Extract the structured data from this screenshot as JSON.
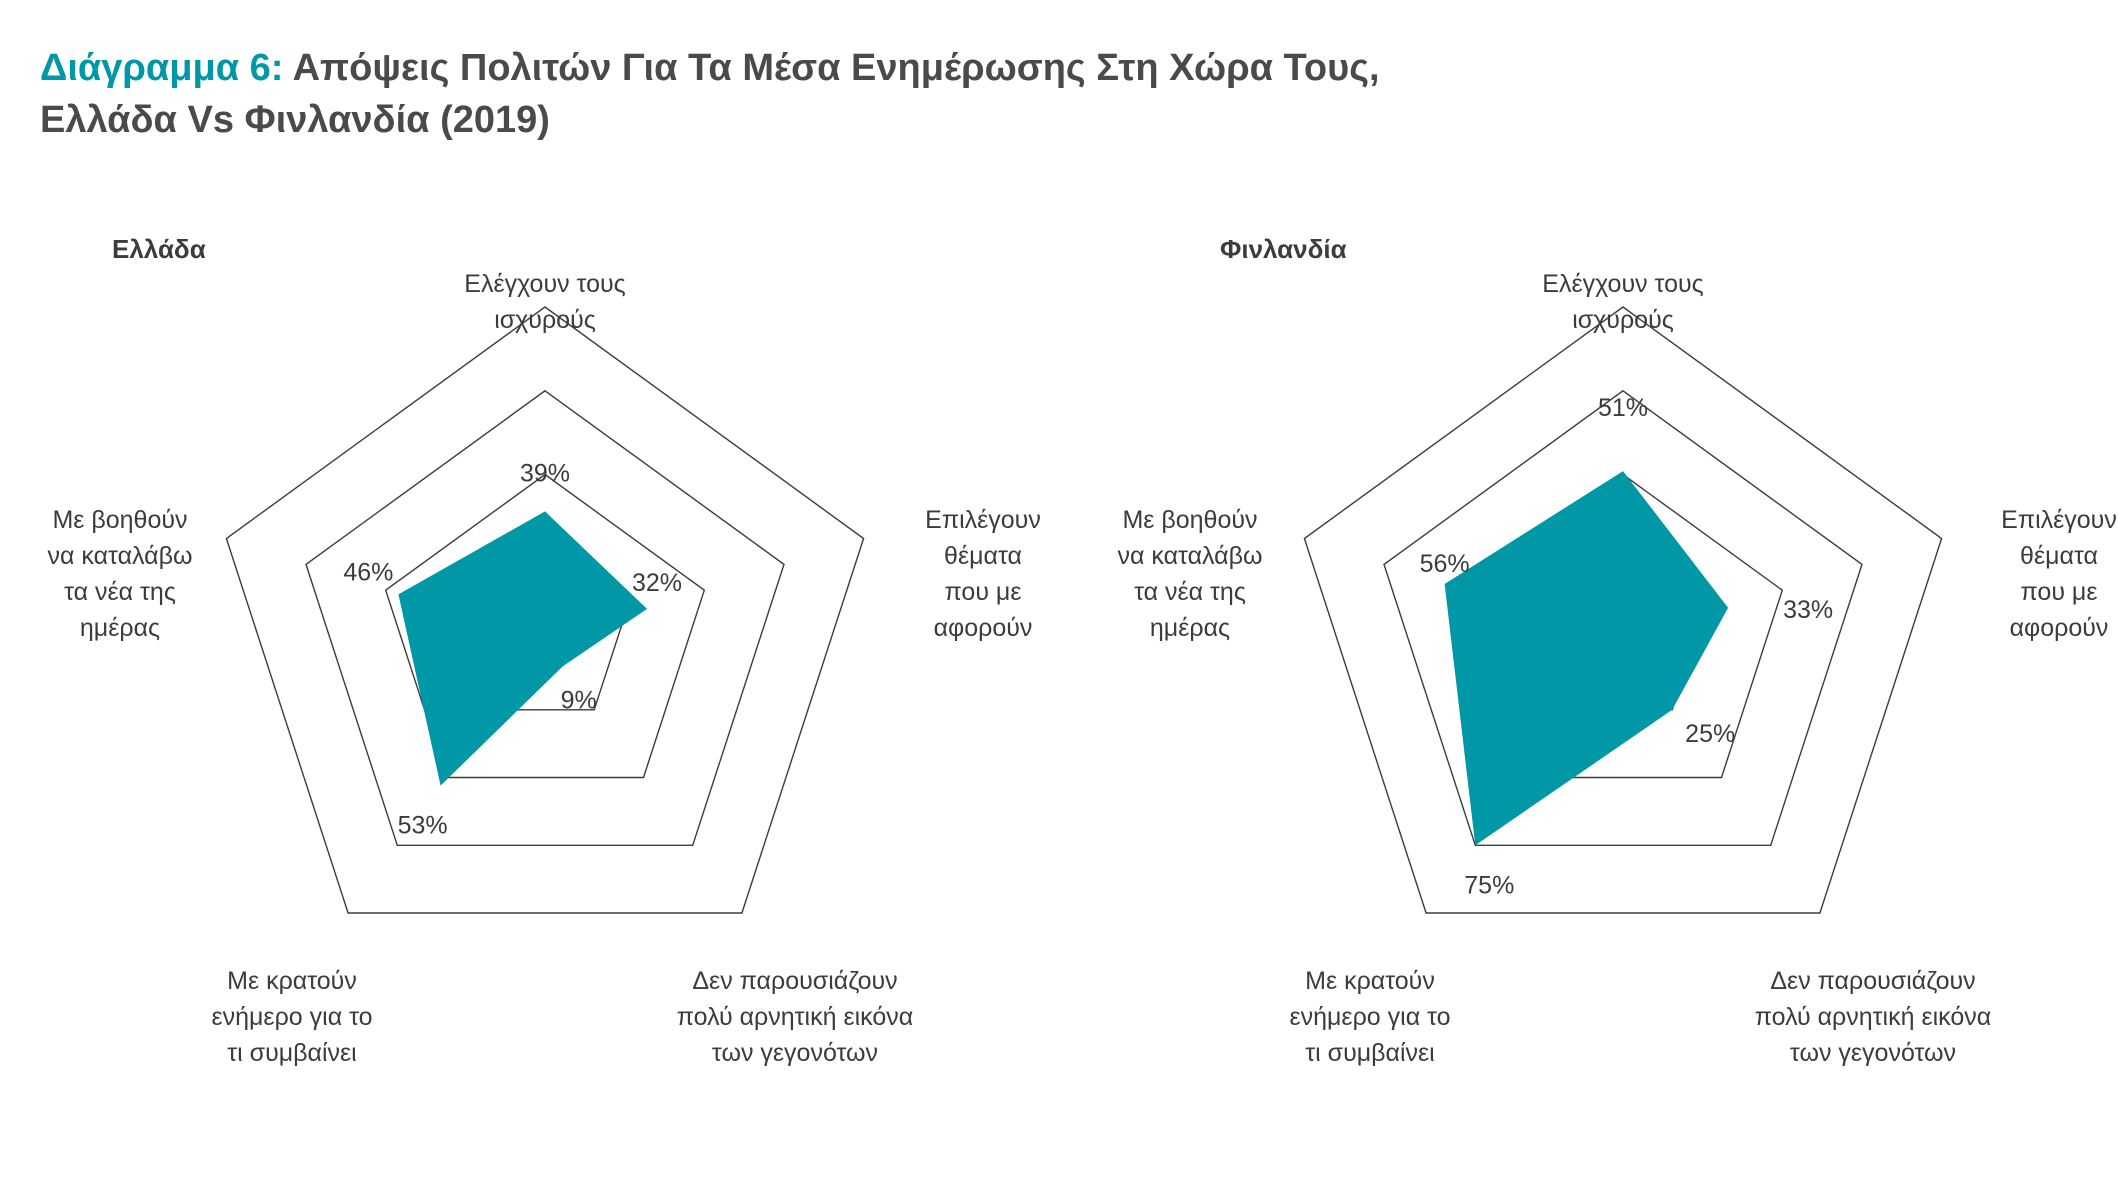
{
  "title": {
    "prefix": "Διάγραμμα 6:",
    "line1_rest": "Απόψεις Πολιτών Για Τα Μέσα Ενημέρωσης Στη Χώρα Τους,",
    "line2": "Ελλάδα Vs Φινλανδία (2019)"
  },
  "colors": {
    "accent": "#0097a7",
    "text": "#3c3c3c",
    "grid": "#3c3c3c"
  },
  "chart_data": [
    {
      "type": "radar",
      "panel_title": "Ελλάδα",
      "axes": [
        [
          "Ελέγχουν τους",
          "ισχυρούς"
        ],
        [
          "Επιλέγουν",
          "θέματα",
          "που με",
          "αφορούν"
        ],
        [
          "Δεν παρουσιάζουν",
          "πολύ αρνητική εικόνα",
          "των γεγονότων"
        ],
        [
          "Με κρατούν",
          "ενήμερο για το",
          "τι συμβαίνει"
        ],
        [
          "Με βοηθούν",
          "να καταλάβω",
          "τα νέα της",
          "ημέρας"
        ]
      ],
      "values": [
        39,
        32,
        9,
        53,
        46
      ],
      "value_labels": [
        "39%",
        "32%",
        "9%",
        "53%",
        "46%"
      ],
      "range": [
        0,
        100
      ],
      "grid_rings": 4,
      "color": "#0097a7"
    },
    {
      "type": "radar",
      "panel_title": "Φινλανδία",
      "axes": [
        [
          "Ελέγχουν τους",
          "ισχυρούς"
        ],
        [
          "Επιλέγουν",
          "θέματα",
          "που με",
          "αφορούν"
        ],
        [
          "Δεν παρουσιάζουν",
          "πολύ αρνητική εικόνα",
          "των γεγονότων"
        ],
        [
          "Με κρατούν",
          "ενήμερο για το",
          "τι συμβαίνει"
        ],
        [
          "Με βοηθούν",
          "να καταλάβω",
          "τα νέα της",
          "ημέρας"
        ]
      ],
      "values": [
        51,
        33,
        25,
        75,
        56
      ],
      "value_labels": [
        "51%",
        "33%",
        "25%",
        "75%",
        "56%"
      ],
      "range": [
        0,
        100
      ],
      "grid_rings": 4,
      "color": "#0097a7"
    }
  ]
}
